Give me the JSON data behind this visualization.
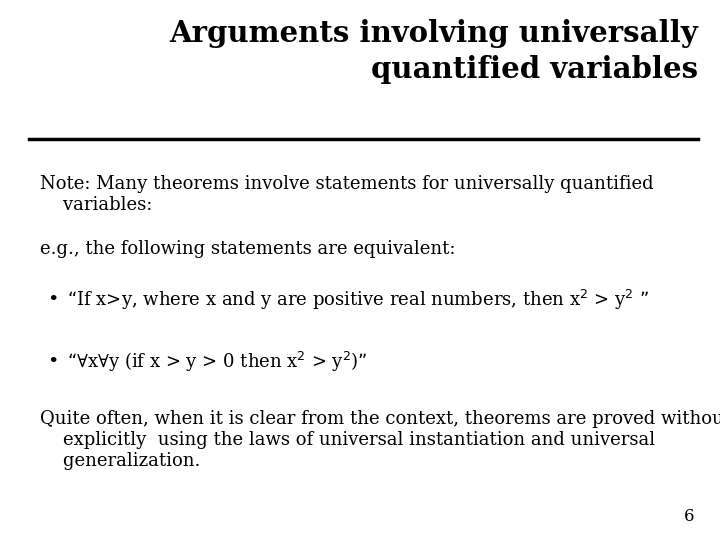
{
  "background_color": "#ffffff",
  "title_line1": "Arguments involving universally",
  "title_line2": "quantified variables",
  "title_fontsize": 21,
  "title_color": "#000000",
  "body_color": "#000000",
  "body_fontsize": 13,
  "note_text": "Note: Many theorems involve statements for universally quantified\n    variables:",
  "eg_text": "e.g., the following statements are equivalent:",
  "bullet1_main": "“If x>y, where x and y are positive real numbers, then x$^2$ > y$^2$ ”",
  "bullet2_main": "“∀x∀y (if x > y > 0 then x$^2$ > y$^2$)”",
  "quite_text": "Quite often, when it is clear from the context, theorems are proved without\n    explicitly  using the laws of universal instantiation and universal\n    generalization.",
  "page_num": "6"
}
